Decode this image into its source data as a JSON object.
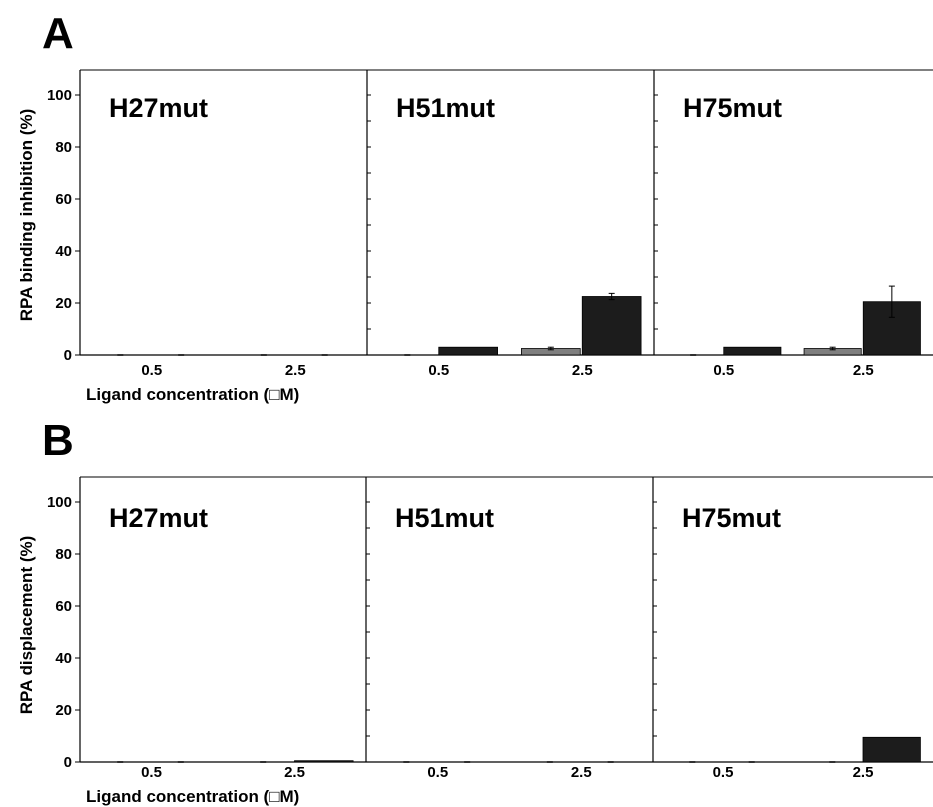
{
  "colors": {
    "dark": "#1c1c1c",
    "grey": "#7f7f7f",
    "axis": "#000000",
    "background": "#ffffff"
  },
  "chart_data": [
    {
      "panel": "A",
      "type": "bar",
      "ylabel": "RPA binding inhibition (%)",
      "xlabel": "Ligand  concentration (□M)",
      "ylim": [
        0,
        110
      ],
      "yticks": [
        0,
        20,
        40,
        60,
        80,
        100
      ],
      "categories": [
        "0.5",
        "2.5"
      ],
      "series_colors": [
        "#7f7f7f",
        "#1c1c1c"
      ],
      "subplots": [
        {
          "title": "H27mut",
          "series": [
            {
              "values": [
                0,
                0
              ]
            },
            {
              "values": [
                0,
                0
              ]
            }
          ],
          "errors": [
            [
              0,
              0
            ],
            [
              0,
              0
            ]
          ]
        },
        {
          "title": "H51mut",
          "series": [
            {
              "values": [
                0,
                2.5
              ]
            },
            {
              "values": [
                3,
                22.5
              ]
            }
          ],
          "errors": [
            [
              0,
              0.5
            ],
            [
              0,
              1.2
            ]
          ]
        },
        {
          "title": "H75mut",
          "series": [
            {
              "values": [
                0,
                2.5
              ]
            },
            {
              "values": [
                3,
                20.5
              ]
            }
          ],
          "errors": [
            [
              0,
              0.5
            ],
            [
              0,
              6
            ]
          ]
        }
      ]
    },
    {
      "panel": "B",
      "type": "bar",
      "ylabel": "RPA displacement (%)",
      "xlabel": "Ligand  concentration (□M)",
      "ylim": [
        0,
        110
      ],
      "yticks": [
        0,
        20,
        40,
        60,
        80,
        100
      ],
      "categories": [
        "0.5",
        "2.5"
      ],
      "series_colors": [
        "#7f7f7f",
        "#1c1c1c"
      ],
      "subplots": [
        {
          "title": "H27mut",
          "series": [
            {
              "values": [
                0,
                0
              ]
            },
            {
              "values": [
                0,
                0.5
              ]
            }
          ],
          "errors": [
            [
              0,
              0
            ],
            [
              0,
              0
            ]
          ]
        },
        {
          "title": "H51mut",
          "series": [
            {
              "values": [
                0,
                0
              ]
            },
            {
              "values": [
                0,
                0
              ]
            }
          ],
          "errors": [
            [
              0,
              0
            ],
            [
              0,
              0
            ]
          ]
        },
        {
          "title": "H75mut",
          "series": [
            {
              "values": [
                0,
                0
              ]
            },
            {
              "values": [
                0,
                9.5
              ]
            }
          ],
          "errors": [
            [
              0,
              0
            ],
            [
              0,
              0
            ]
          ]
        }
      ]
    }
  ]
}
